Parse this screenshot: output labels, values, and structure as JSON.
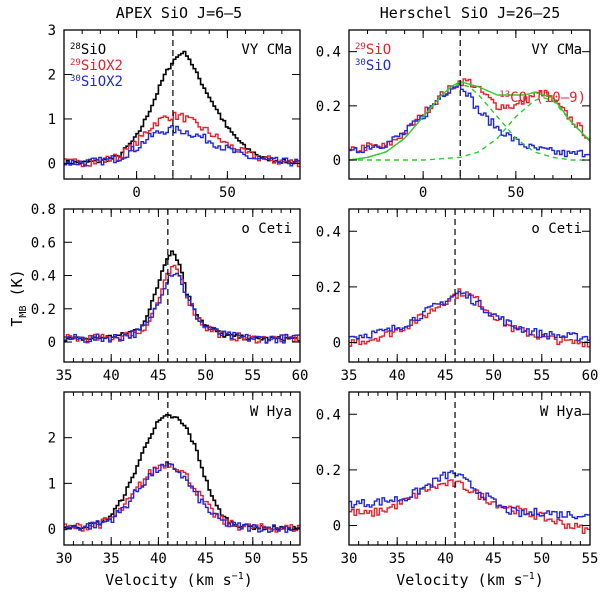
{
  "figure": {
    "col_titles": [
      "APEX SiO J=6–5",
      "Herschel SiO J=26–25"
    ],
    "xlabel": "Velocity (km s",
    "xlabel_sup": "−1",
    "xlabel_end": ")",
    "ylabel_main": "T",
    "ylabel_sub": "MB",
    "ylabel_unit": " (K)"
  },
  "colors": {
    "black": "#000000",
    "red": "#e8202a",
    "blue": "#1f27d6",
    "green": "#2ecc2e"
  },
  "chart_data": [
    {
      "type": "line",
      "star": "VY CMa",
      "instrument": "APEX",
      "xlim": [
        -40,
        90
      ],
      "ylim": [
        -0.35,
        3.0
      ],
      "xticks": [
        0,
        50
      ],
      "yticks": [
        0,
        1,
        2,
        3
      ],
      "vline": 20,
      "legend": [
        {
          "sup": "28",
          "text": "SiO",
          "color": "black"
        },
        {
          "sup": "29",
          "text": "SiOX2",
          "color": "red"
        },
        {
          "sup": "30",
          "text": "SiOX2",
          "color": "blue"
        }
      ],
      "series": [
        {
          "name": "28SiO",
          "color": "black",
          "x": [
            -40,
            -30,
            -20,
            -10,
            0,
            5,
            10,
            15,
            20,
            25,
            28,
            32,
            40,
            50,
            60,
            70,
            80,
            90
          ],
          "y": [
            0.02,
            0.02,
            0.05,
            0.15,
            0.6,
            1.0,
            1.45,
            1.95,
            2.3,
            2.5,
            2.45,
            2.1,
            1.5,
            0.8,
            0.35,
            0.12,
            0.05,
            0.03
          ]
        },
        {
          "name": "29SiO x2",
          "color": "red",
          "x": [
            -40,
            -30,
            -20,
            -10,
            0,
            5,
            10,
            15,
            20,
            25,
            30,
            40,
            50,
            60,
            70,
            80,
            90
          ],
          "y": [
            0.02,
            0.02,
            0.05,
            0.15,
            0.45,
            0.7,
            0.9,
            1.02,
            1.07,
            1.05,
            0.95,
            0.7,
            0.42,
            0.22,
            0.1,
            0.04,
            0.02
          ]
        },
        {
          "name": "30SiO x2",
          "color": "blue",
          "x": [
            -40,
            -30,
            -20,
            -10,
            0,
            5,
            10,
            15,
            20,
            25,
            30,
            40,
            50,
            60,
            70,
            80,
            90
          ],
          "y": [
            0.02,
            0.02,
            0.05,
            0.12,
            0.35,
            0.52,
            0.66,
            0.74,
            0.76,
            0.74,
            0.68,
            0.52,
            0.32,
            0.16,
            0.07,
            0.03,
            0.02
          ]
        }
      ]
    },
    {
      "type": "line",
      "star": "VY CMa",
      "instrument": "Herschel",
      "xlim": [
        -40,
        90
      ],
      "ylim": [
        -0.07,
        0.48
      ],
      "xticks": [
        0,
        50
      ],
      "yticks": [
        0,
        0.2,
        0.4
      ],
      "vline": 20,
      "legend": [
        {
          "sup": "29",
          "text": "SiO",
          "color": "red"
        },
        {
          "sup": "30",
          "text": "SiO",
          "color": "blue"
        }
      ],
      "annotation": {
        "sup": "13",
        "text": "CO (10–9)",
        "color": "red"
      },
      "series": [
        {
          "name": "29SiO",
          "color": "red",
          "x": [
            -40,
            -30,
            -20,
            -10,
            0,
            10,
            20,
            25,
            30,
            40,
            50,
            60,
            65,
            70,
            80,
            90
          ],
          "y": [
            0.03,
            0.05,
            0.05,
            0.1,
            0.17,
            0.24,
            0.29,
            0.29,
            0.26,
            0.2,
            0.2,
            0.24,
            0.25,
            0.22,
            0.15,
            0.08
          ]
        },
        {
          "name": "30SiO",
          "color": "blue",
          "x": [
            -40,
            -30,
            -20,
            -10,
            0,
            10,
            18,
            22,
            30,
            40,
            50,
            60,
            70,
            80,
            90
          ],
          "y": [
            0.02,
            0.05,
            0.06,
            0.1,
            0.16,
            0.24,
            0.28,
            0.27,
            0.18,
            0.12,
            0.07,
            0.04,
            0.03,
            0.02,
            0.03
          ]
        },
        {
          "name": "Gaussian fit 1",
          "color": "green",
          "dashed": true,
          "x": [
            -40,
            -30,
            -20,
            -10,
            0,
            10,
            15,
            20,
            25,
            30,
            40,
            50,
            60,
            70,
            80,
            90
          ],
          "y": [
            0.0,
            0.01,
            0.03,
            0.08,
            0.16,
            0.24,
            0.27,
            0.28,
            0.27,
            0.24,
            0.16,
            0.08,
            0.03,
            0.01,
            0.0,
            0.0
          ]
        },
        {
          "name": "Gaussian fit 2",
          "color": "green",
          "dashed": true,
          "x": [
            -40,
            0,
            20,
            30,
            40,
            50,
            60,
            65,
            70,
            80,
            90
          ],
          "y": [
            0.0,
            0.0,
            0.01,
            0.03,
            0.08,
            0.16,
            0.22,
            0.23,
            0.22,
            0.14,
            0.07
          ]
        },
        {
          "name": "Gaussian fit sum",
          "color": "green",
          "dashed": false,
          "x": [
            -40,
            -30,
            -20,
            -10,
            0,
            10,
            15,
            20,
            25,
            30,
            40,
            50,
            55,
            60,
            65,
            70,
            80,
            90
          ],
          "y": [
            0.0,
            0.01,
            0.03,
            0.08,
            0.16,
            0.24,
            0.27,
            0.29,
            0.28,
            0.27,
            0.24,
            0.24,
            0.24,
            0.25,
            0.24,
            0.23,
            0.14,
            0.07
          ]
        }
      ]
    },
    {
      "type": "line",
      "star": "o Ceti",
      "instrument": "APEX",
      "xlim": [
        35,
        60
      ],
      "ylim": [
        -0.12,
        0.8
      ],
      "xticks": [
        35,
        40,
        45,
        50,
        55,
        60
      ],
      "yticks": [
        0,
        0.2,
        0.4,
        0.6,
        0.8
      ],
      "vline": 46,
      "series": [
        {
          "name": "28SiO",
          "color": "black",
          "x": [
            35,
            38,
            41,
            43,
            44,
            45,
            45.5,
            46,
            46.5,
            47,
            47.5,
            48,
            49,
            50,
            52,
            55,
            58,
            60
          ],
          "y": [
            0.02,
            0.02,
            0.04,
            0.08,
            0.18,
            0.35,
            0.45,
            0.52,
            0.55,
            0.5,
            0.42,
            0.3,
            0.18,
            0.1,
            0.04,
            0.02,
            0.02,
            0.02
          ]
        },
        {
          "name": "29SiO x2",
          "color": "red",
          "x": [
            35,
            38,
            41,
            43,
            44,
            45,
            45.5,
            46,
            46.5,
            47,
            47.5,
            48,
            49,
            50,
            52,
            55,
            58,
            60
          ],
          "y": [
            0.02,
            0.02,
            0.03,
            0.06,
            0.12,
            0.25,
            0.33,
            0.4,
            0.44,
            0.43,
            0.37,
            0.28,
            0.16,
            0.09,
            0.04,
            0.02,
            0.02,
            0.02
          ]
        },
        {
          "name": "30SiO x2",
          "color": "blue",
          "x": [
            35,
            38,
            41,
            43,
            44,
            45,
            45.5,
            46,
            46.5,
            47,
            47.5,
            48,
            49,
            50,
            52,
            55,
            58,
            60
          ],
          "y": [
            0.02,
            0.02,
            0.03,
            0.06,
            0.12,
            0.24,
            0.32,
            0.39,
            0.42,
            0.42,
            0.36,
            0.27,
            0.16,
            0.09,
            0.04,
            0.02,
            0.02,
            0.02
          ]
        }
      ]
    },
    {
      "type": "line",
      "star": "o Ceti",
      "instrument": "Herschel",
      "xlim": [
        35,
        60
      ],
      "ylim": [
        -0.07,
        0.48
      ],
      "xticks": [
        35,
        40,
        45,
        50,
        55,
        60
      ],
      "yticks": [
        0,
        0.2,
        0.4
      ],
      "vline": 46,
      "series": [
        {
          "name": "29SiO",
          "color": "red",
          "x": [
            35,
            37,
            39,
            41,
            43,
            45,
            46,
            46.5,
            47,
            48,
            50,
            52,
            55,
            58,
            60
          ],
          "y": [
            0.0,
            0.01,
            0.03,
            0.06,
            0.1,
            0.15,
            0.17,
            0.18,
            0.18,
            0.16,
            0.1,
            0.05,
            0.02,
            0.0,
            0.0
          ]
        },
        {
          "name": "30SiO",
          "color": "blue",
          "x": [
            35,
            37,
            39,
            41,
            43,
            45,
            46,
            46.5,
            47,
            48,
            50,
            52,
            55,
            58,
            60
          ],
          "y": [
            0.02,
            0.03,
            0.04,
            0.07,
            0.11,
            0.15,
            0.17,
            0.18,
            0.17,
            0.15,
            0.1,
            0.06,
            0.03,
            0.02,
            0.02
          ]
        }
      ]
    },
    {
      "type": "line",
      "star": "W Hya",
      "instrument": "APEX",
      "xlim": [
        30,
        55
      ],
      "ylim": [
        -0.35,
        3.0
      ],
      "xticks": [
        30,
        35,
        40,
        45,
        50,
        55
      ],
      "yticks": [
        0,
        1,
        2
      ],
      "vline": 41,
      "series": [
        {
          "name": "28SiO",
          "color": "black",
          "x": [
            30,
            32,
            34,
            35,
            36,
            37,
            38,
            39,
            40,
            41,
            42,
            43,
            44,
            45,
            46,
            47,
            48,
            50,
            52,
            55
          ],
          "y": [
            0.03,
            0.05,
            0.15,
            0.3,
            0.6,
            1.0,
            1.5,
            2.0,
            2.35,
            2.48,
            2.42,
            2.2,
            1.75,
            1.1,
            0.55,
            0.25,
            0.1,
            0.04,
            0.02,
            0.02
          ]
        },
        {
          "name": "29SiO x2",
          "color": "red",
          "x": [
            30,
            32,
            34,
            35,
            36,
            37,
            38,
            39,
            40,
            41,
            42,
            43,
            44,
            45,
            46,
            47,
            48,
            50,
            52,
            55
          ],
          "y": [
            0.03,
            0.05,
            0.12,
            0.22,
            0.4,
            0.65,
            0.95,
            1.2,
            1.38,
            1.45,
            1.38,
            1.15,
            0.85,
            0.55,
            0.3,
            0.15,
            0.08,
            0.03,
            0.02,
            0.02
          ]
        },
        {
          "name": "30SiO x2",
          "color": "blue",
          "x": [
            30,
            32,
            34,
            35,
            36,
            37,
            38,
            39,
            40,
            41,
            42,
            43,
            44,
            45,
            46,
            47,
            48,
            50,
            52,
            55
          ],
          "y": [
            0.03,
            0.05,
            0.12,
            0.22,
            0.38,
            0.62,
            0.9,
            1.15,
            1.32,
            1.38,
            1.3,
            1.05,
            0.75,
            0.48,
            0.27,
            0.14,
            0.07,
            0.03,
            0.02,
            0.02
          ]
        }
      ]
    },
    {
      "type": "line",
      "star": "W Hya",
      "instrument": "Herschel",
      "xlim": [
        30,
        55
      ],
      "ylim": [
        -0.07,
        0.48
      ],
      "xticks": [
        30,
        35,
        40,
        45,
        50,
        55
      ],
      "yticks": [
        0,
        0.2,
        0.4
      ],
      "vline": 41,
      "series": [
        {
          "name": "29SiO",
          "color": "red",
          "x": [
            30,
            32,
            34,
            36,
            38,
            40,
            41,
            42,
            44,
            46,
            48,
            50,
            52,
            54,
            55
          ],
          "y": [
            0.05,
            0.04,
            0.06,
            0.09,
            0.13,
            0.15,
            0.15,
            0.14,
            0.1,
            0.07,
            0.05,
            0.03,
            0.01,
            -0.01,
            -0.02
          ]
        },
        {
          "name": "30SiO",
          "color": "blue",
          "x": [
            30,
            32,
            34,
            36,
            38,
            40,
            41,
            42,
            44,
            46,
            48,
            50,
            52,
            54,
            55
          ],
          "y": [
            0.08,
            0.08,
            0.09,
            0.1,
            0.14,
            0.18,
            0.19,
            0.16,
            0.11,
            0.06,
            0.04,
            0.05,
            0.04,
            0.04,
            0.03
          ]
        }
      ]
    }
  ]
}
